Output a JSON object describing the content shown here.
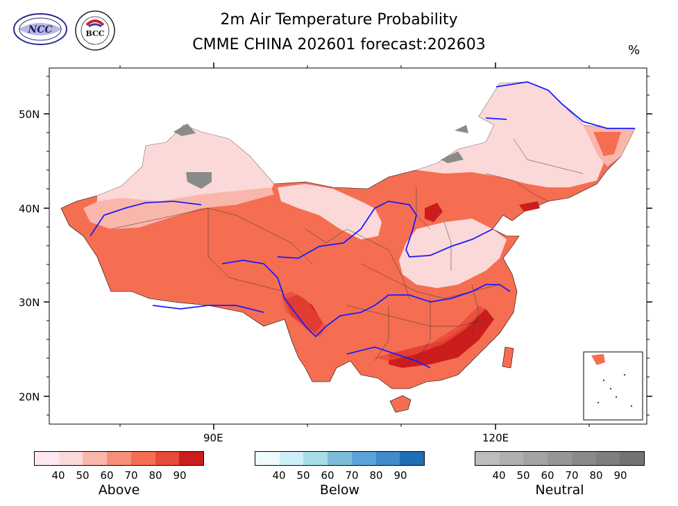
{
  "title_line1": "2m Air Temperature Probability",
  "title_line2": "CMME CHINA 202601 forecast:202603",
  "unit": "%",
  "logos": [
    {
      "icon": "ncc-logo",
      "text": "NCC"
    },
    {
      "icon": "bcc-logo",
      "text": "BCC"
    }
  ],
  "axes": {
    "lat_labels": [
      "50N",
      "40N",
      "30N",
      "20N"
    ],
    "lon_labels": [
      "90E",
      "120E"
    ]
  },
  "map_data": {
    "type": "probability-map",
    "region": "China",
    "lon_range": [
      70,
      140
    ],
    "lat_range": [
      17,
      55
    ],
    "dominant_category": "Above",
    "hotspots_90": [
      "Southeast China (Jiangxi/Fujian/Guangdong)",
      "Western Sichuan",
      "Liaoning coast",
      "Shanxi"
    ],
    "neutral_patches": [
      "Northern Xinjiang",
      "Northeastern Inner Mongolia"
    ]
  },
  "colorbars": [
    {
      "name": "above",
      "title": "Above",
      "labels": [
        "40",
        "50",
        "60",
        "70",
        "80",
        "90"
      ],
      "colors": [
        "#fde8f2",
        "#fbd9d9",
        "#f9b7ac",
        "#f78f78",
        "#f56e52",
        "#e84a3a",
        "#cc1d1d"
      ]
    },
    {
      "name": "below",
      "title": "Below",
      "labels": [
        "40",
        "50",
        "60",
        "70",
        "80",
        "90"
      ],
      "colors": [
        "#edfbfd",
        "#cdf0f8",
        "#a6dde6",
        "#7bbdd7",
        "#5ba2da",
        "#3f8bcc",
        "#1f6fb5"
      ]
    },
    {
      "name": "neutral",
      "title": "Neutral",
      "labels": [
        "40",
        "50",
        "60",
        "70",
        "80",
        "90"
      ],
      "colors": [
        "#bdbdbd",
        "#b0b0b0",
        "#a3a3a3",
        "#969696",
        "#8a8a8a",
        "#7f7f7f",
        "#737373"
      ]
    }
  ]
}
